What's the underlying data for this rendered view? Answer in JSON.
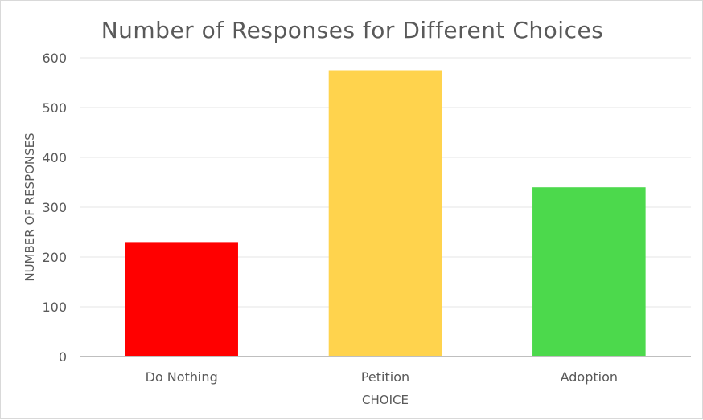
{
  "chart_data": {
    "type": "bar",
    "title": "Number of Responses for Different Choices",
    "xlabel": "CHOICE",
    "ylabel": "NUMBER OF RESPONSES",
    "categories": [
      "Do Nothing",
      "Petition",
      "Adoption"
    ],
    "values": [
      230,
      575,
      340
    ],
    "colors": [
      "#ff0000",
      "#ffd34d",
      "#4cd94c"
    ],
    "ylim": [
      0,
      600
    ],
    "yticks": [
      0,
      100,
      200,
      300,
      400,
      500,
      600
    ],
    "grid": true,
    "legend": "none"
  }
}
